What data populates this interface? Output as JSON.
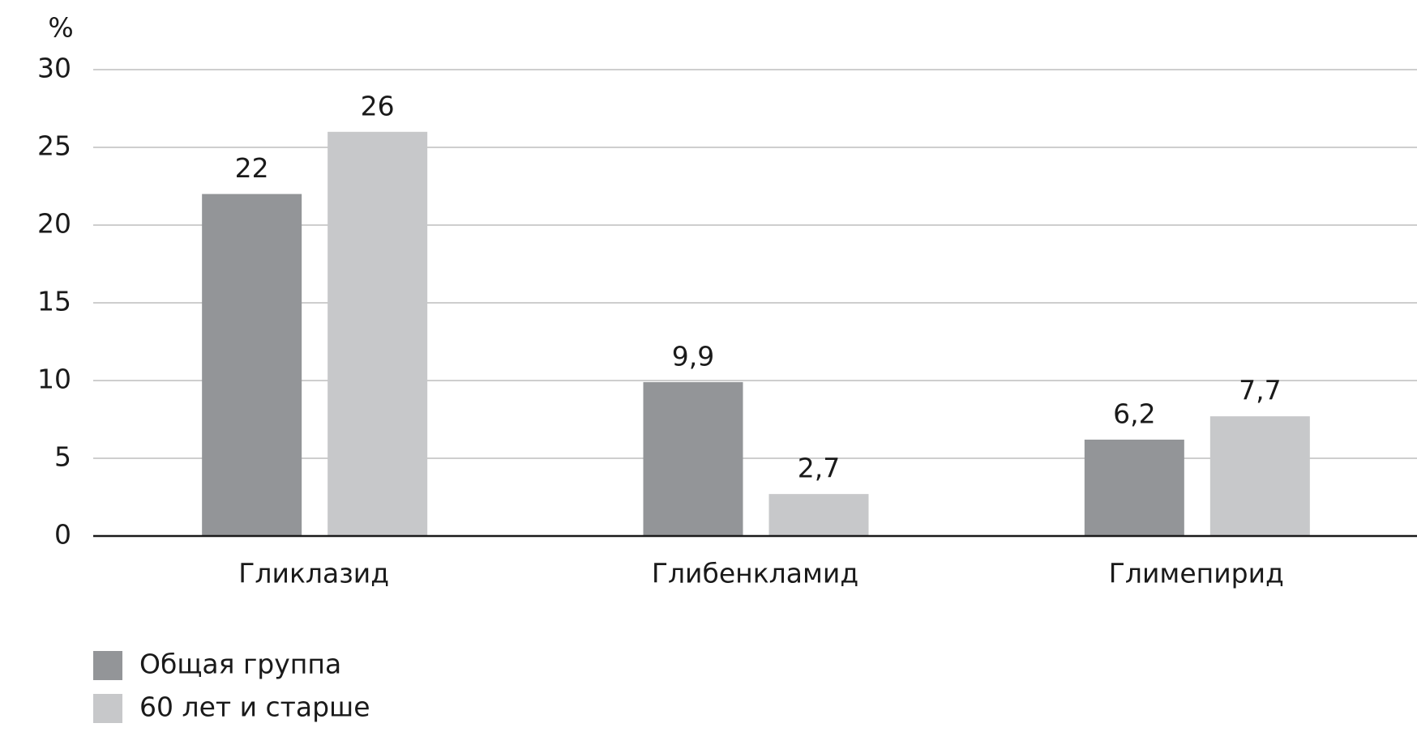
{
  "chart_data": {
    "type": "bar",
    "y_label": "%",
    "categories": [
      "Гликлазид",
      "Глибенкламид",
      "Глимепирид"
    ],
    "series": [
      {
        "name": "Общая группа",
        "color": "#939598",
        "values": [
          22,
          9.9,
          6.2
        ],
        "value_labels": [
          "22",
          "9,9",
          "6,2"
        ]
      },
      {
        "name": "60 лет и старше",
        "color": "#c7c8ca",
        "values": [
          26,
          2.7,
          7.7
        ],
        "value_labels": [
          "26",
          "2,7",
          "7,7"
        ]
      }
    ],
    "ylim": [
      0,
      30
    ],
    "yticks": [
      0,
      5,
      10,
      15,
      20,
      25,
      30
    ],
    "grid": true,
    "legend": "bottom-left"
  }
}
